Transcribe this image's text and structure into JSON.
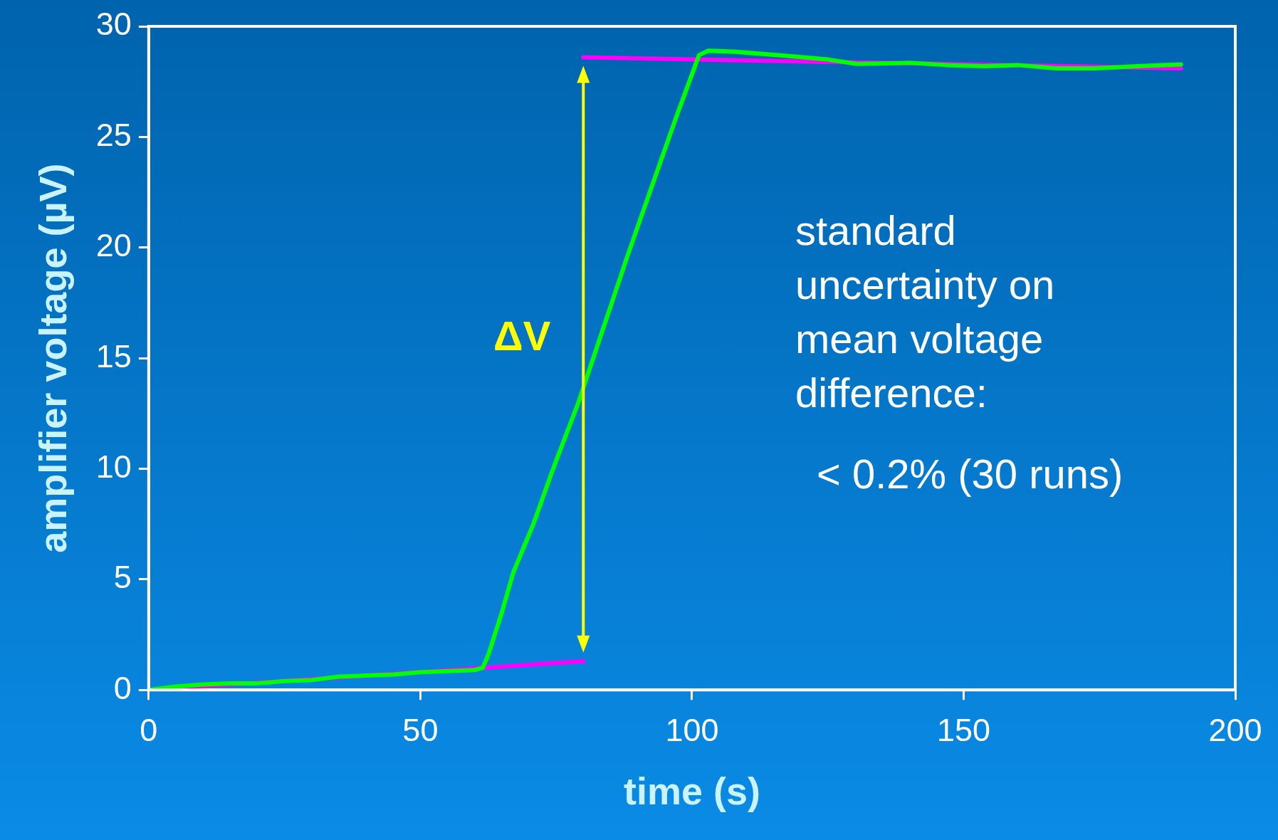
{
  "chart_data": {
    "type": "line",
    "xlabel": "time (s)",
    "ylabel": "amplifier voltage (µV)",
    "xlim": [
      0,
      200
    ],
    "xticks": [
      0,
      50,
      100,
      150,
      200
    ],
    "ylim": [
      0,
      30
    ],
    "yticks": [
      0,
      5,
      10,
      15,
      20,
      25,
      30
    ],
    "grid": false,
    "legend": false,
    "marker": "none",
    "line_style": "solid",
    "series": [
      {
        "color": "#00ff00",
        "x": [
          0,
          5,
          10,
          15,
          20,
          25,
          30,
          35,
          40,
          45,
          50,
          55,
          60,
          61.5,
          62.6,
          65,
          67.1,
          70.8,
          74.6,
          79.1,
          83.6,
          88.1,
          91.8,
          97.1,
          101.3,
          103,
          108,
          113,
          118.6,
          125,
          130.3,
          140,
          147,
          153.7,
          160,
          167,
          174.2,
          182,
          190
        ],
        "values": [
          0,
          0.15,
          0.25,
          0.3,
          0.3,
          0.4,
          0.45,
          0.6,
          0.65,
          0.7,
          0.8,
          0.85,
          0.9,
          1.0,
          1.65,
          3.5,
          5.3,
          7.5,
          10.1,
          13.0,
          16.3,
          19.6,
          22.2,
          25.9,
          28.7,
          28.9,
          28.85,
          28.75,
          28.64,
          28.5,
          28.3,
          28.35,
          28.25,
          28.2,
          28.25,
          28.1,
          28.1,
          28.2,
          28.28
        ]
      },
      {
        "color": "#ff00ff",
        "x": [
          0,
          80
        ],
        "values": [
          0,
          1.3
        ]
      },
      {
        "color": "#ff00ff",
        "x": [
          80,
          190
        ],
        "values": [
          28.6,
          28.1
        ]
      }
    ],
    "annotations": [
      "ΔV",
      "standard uncertainty on mean voltage difference:",
      "< 0.2% (30 runs)"
    ]
  }
}
